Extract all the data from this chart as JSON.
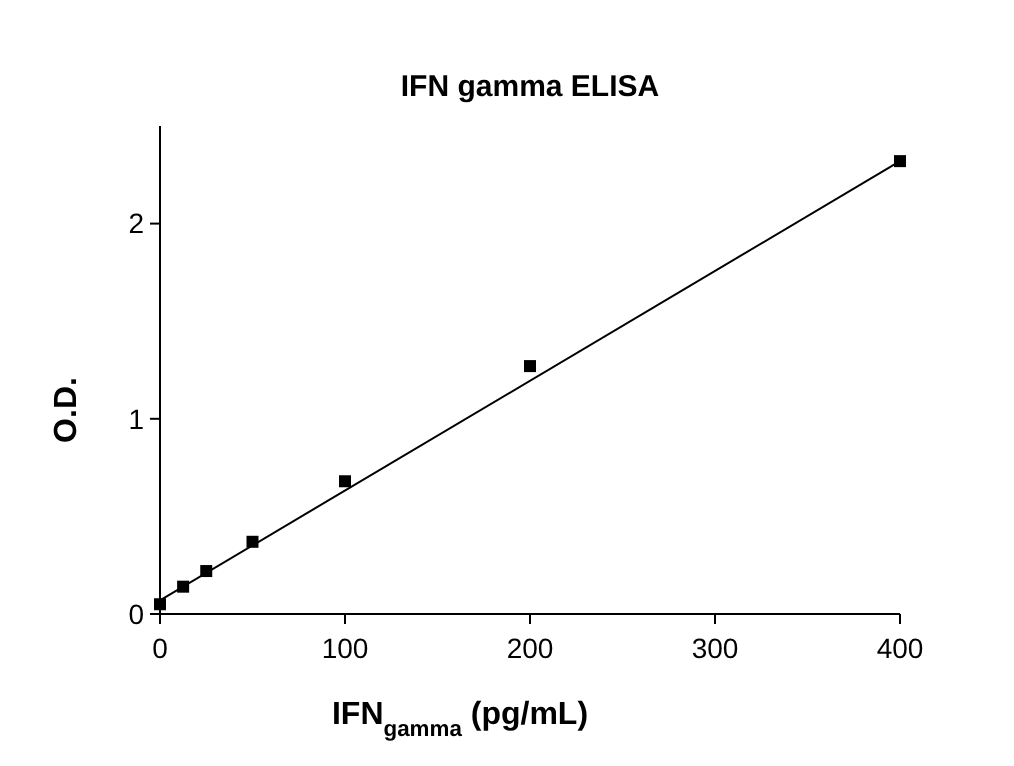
{
  "chart_data": {
    "type": "scatter",
    "title": "IFN gamma ELISA",
    "xlabel": "IFN$_{gamma}$ (pg/mL)",
    "ylabel": "O.D.",
    "xlim": [
      0,
      400
    ],
    "xticks": [
      0,
      100,
      200,
      300,
      400
    ],
    "ylim": [
      0,
      2.5
    ],
    "yticks": [
      0,
      1,
      2
    ],
    "series": [
      {
        "color": "#000000",
        "marker": "square",
        "x": [
          0,
          12.5,
          25,
          50,
          100,
          200,
          400
        ],
        "values": [
          0.05,
          0.14,
          0.22,
          0.37,
          0.68,
          1.27,
          2.32
        ]
      },
      {
        "type": "line",
        "color": "#000000",
        "x": [
          0,
          400
        ],
        "values": [
          0.07,
          2.32
        ]
      }
    ]
  }
}
